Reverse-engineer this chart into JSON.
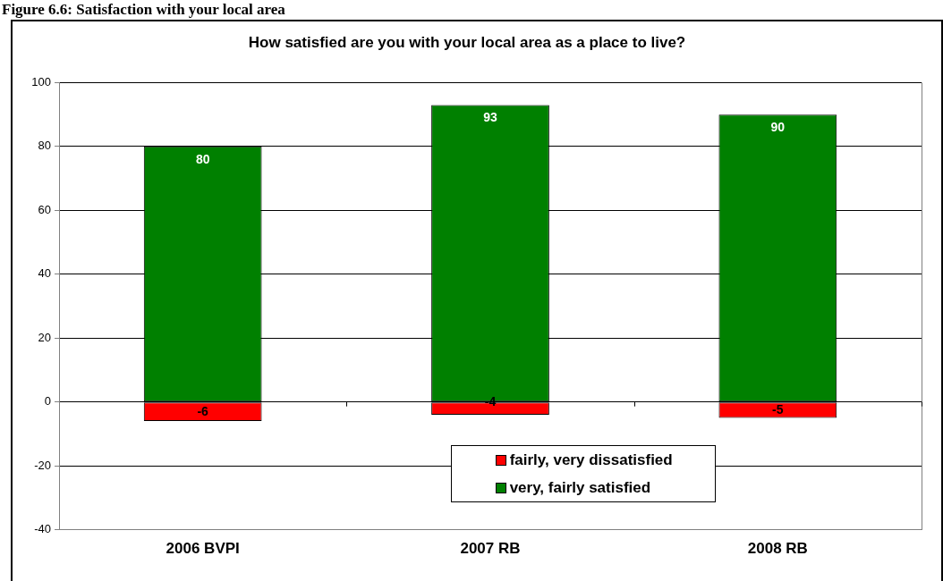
{
  "chart_data": {
    "type": "bar",
    "title": "Figure 6.6: Satisfaction with your local area",
    "subtitle": "How satisfied are you with your local area as a place to live?",
    "categories": [
      "2006 BVPI",
      "2007 RB",
      "2008 RB"
    ],
    "series": [
      {
        "name": "fairly, very dissatisfied",
        "color": "#ff0000",
        "values": [
          -6,
          -4,
          -5
        ]
      },
      {
        "name": "very, fairly satisfied",
        "color": "#008000",
        "values": [
          80,
          93,
          90
        ]
      }
    ],
    "stacked": true,
    "ylim": [
      -40,
      100
    ],
    "yticks": [
      -40,
      -20,
      0,
      20,
      40,
      60,
      80,
      100
    ],
    "grid": "y",
    "legend": "bottom",
    "data_labels": true
  }
}
